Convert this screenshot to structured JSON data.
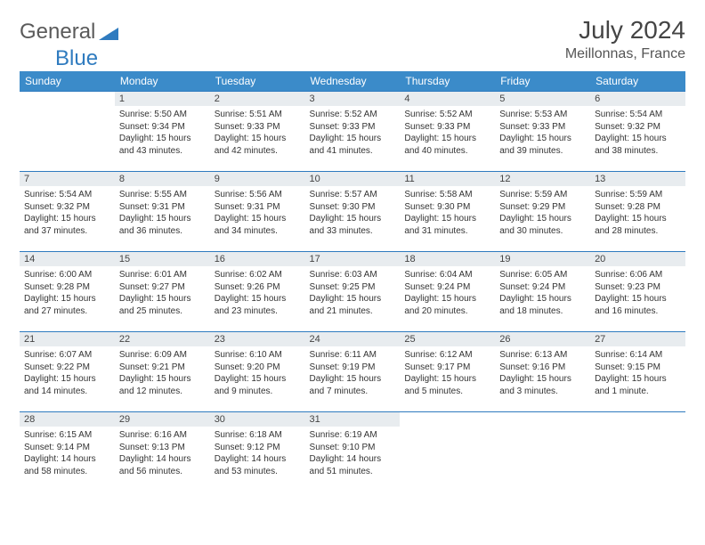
{
  "logo": {
    "text1": "General",
    "text2": "Blue"
  },
  "title": "July 2024",
  "location": "Meillonnas, France",
  "colors": {
    "header_bg": "#3b8bc9",
    "header_text": "#ffffff",
    "daynum_bg": "#e8ecef",
    "border": "#2f7bbf",
    "logo_gray": "#5a5a5a",
    "logo_blue": "#2f7bbf"
  },
  "day_headers": [
    "Sunday",
    "Monday",
    "Tuesday",
    "Wednesday",
    "Thursday",
    "Friday",
    "Saturday"
  ],
  "weeks": [
    [
      null,
      {
        "n": "1",
        "sr": "5:50 AM",
        "ss": "9:34 PM",
        "dl": "15 hours and 43 minutes."
      },
      {
        "n": "2",
        "sr": "5:51 AM",
        "ss": "9:33 PM",
        "dl": "15 hours and 42 minutes."
      },
      {
        "n": "3",
        "sr": "5:52 AM",
        "ss": "9:33 PM",
        "dl": "15 hours and 41 minutes."
      },
      {
        "n": "4",
        "sr": "5:52 AM",
        "ss": "9:33 PM",
        "dl": "15 hours and 40 minutes."
      },
      {
        "n": "5",
        "sr": "5:53 AM",
        "ss": "9:33 PM",
        "dl": "15 hours and 39 minutes."
      },
      {
        "n": "6",
        "sr": "5:54 AM",
        "ss": "9:32 PM",
        "dl": "15 hours and 38 minutes."
      }
    ],
    [
      {
        "n": "7",
        "sr": "5:54 AM",
        "ss": "9:32 PM",
        "dl": "15 hours and 37 minutes."
      },
      {
        "n": "8",
        "sr": "5:55 AM",
        "ss": "9:31 PM",
        "dl": "15 hours and 36 minutes."
      },
      {
        "n": "9",
        "sr": "5:56 AM",
        "ss": "9:31 PM",
        "dl": "15 hours and 34 minutes."
      },
      {
        "n": "10",
        "sr": "5:57 AM",
        "ss": "9:30 PM",
        "dl": "15 hours and 33 minutes."
      },
      {
        "n": "11",
        "sr": "5:58 AM",
        "ss": "9:30 PM",
        "dl": "15 hours and 31 minutes."
      },
      {
        "n": "12",
        "sr": "5:59 AM",
        "ss": "9:29 PM",
        "dl": "15 hours and 30 minutes."
      },
      {
        "n": "13",
        "sr": "5:59 AM",
        "ss": "9:28 PM",
        "dl": "15 hours and 28 minutes."
      }
    ],
    [
      {
        "n": "14",
        "sr": "6:00 AM",
        "ss": "9:28 PM",
        "dl": "15 hours and 27 minutes."
      },
      {
        "n": "15",
        "sr": "6:01 AM",
        "ss": "9:27 PM",
        "dl": "15 hours and 25 minutes."
      },
      {
        "n": "16",
        "sr": "6:02 AM",
        "ss": "9:26 PM",
        "dl": "15 hours and 23 minutes."
      },
      {
        "n": "17",
        "sr": "6:03 AM",
        "ss": "9:25 PM",
        "dl": "15 hours and 21 minutes."
      },
      {
        "n": "18",
        "sr": "6:04 AM",
        "ss": "9:24 PM",
        "dl": "15 hours and 20 minutes."
      },
      {
        "n": "19",
        "sr": "6:05 AM",
        "ss": "9:24 PM",
        "dl": "15 hours and 18 minutes."
      },
      {
        "n": "20",
        "sr": "6:06 AM",
        "ss": "9:23 PM",
        "dl": "15 hours and 16 minutes."
      }
    ],
    [
      {
        "n": "21",
        "sr": "6:07 AM",
        "ss": "9:22 PM",
        "dl": "15 hours and 14 minutes."
      },
      {
        "n": "22",
        "sr": "6:09 AM",
        "ss": "9:21 PM",
        "dl": "15 hours and 12 minutes."
      },
      {
        "n": "23",
        "sr": "6:10 AM",
        "ss": "9:20 PM",
        "dl": "15 hours and 9 minutes."
      },
      {
        "n": "24",
        "sr": "6:11 AM",
        "ss": "9:19 PM",
        "dl": "15 hours and 7 minutes."
      },
      {
        "n": "25",
        "sr": "6:12 AM",
        "ss": "9:17 PM",
        "dl": "15 hours and 5 minutes."
      },
      {
        "n": "26",
        "sr": "6:13 AM",
        "ss": "9:16 PM",
        "dl": "15 hours and 3 minutes."
      },
      {
        "n": "27",
        "sr": "6:14 AM",
        "ss": "9:15 PM",
        "dl": "15 hours and 1 minute."
      }
    ],
    [
      {
        "n": "28",
        "sr": "6:15 AM",
        "ss": "9:14 PM",
        "dl": "14 hours and 58 minutes."
      },
      {
        "n": "29",
        "sr": "6:16 AM",
        "ss": "9:13 PM",
        "dl": "14 hours and 56 minutes."
      },
      {
        "n": "30",
        "sr": "6:18 AM",
        "ss": "9:12 PM",
        "dl": "14 hours and 53 minutes."
      },
      {
        "n": "31",
        "sr": "6:19 AM",
        "ss": "9:10 PM",
        "dl": "14 hours and 51 minutes."
      },
      null,
      null,
      null
    ]
  ],
  "labels": {
    "sunrise": "Sunrise:",
    "sunset": "Sunset:",
    "daylight": "Daylight:"
  }
}
